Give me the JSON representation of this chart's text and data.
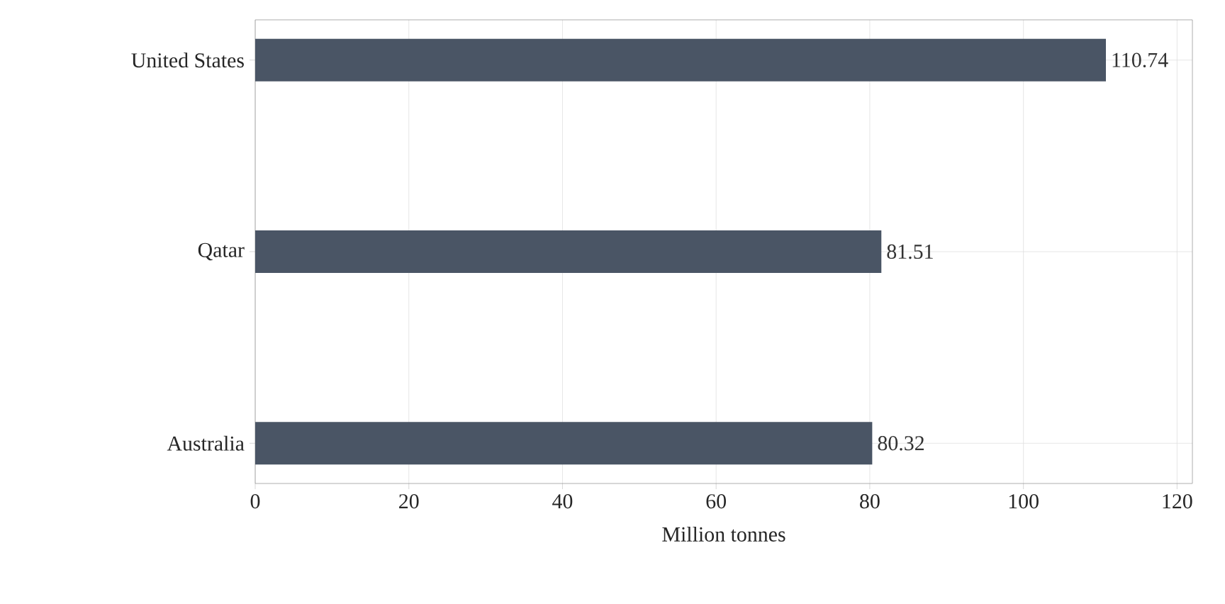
{
  "chart_data": {
    "type": "bar",
    "orientation": "horizontal",
    "xlabel": "Million tonnes",
    "categories": [
      "United States",
      "Qatar",
      "Australia"
    ],
    "values": [
      110.74,
      81.51,
      80.32
    ],
    "color": "#4a5565",
    "xlim": [
      0,
      122
    ],
    "xticks": [
      0,
      20,
      40,
      60,
      80,
      100,
      120
    ],
    "grid": true,
    "data_labels": true
  }
}
